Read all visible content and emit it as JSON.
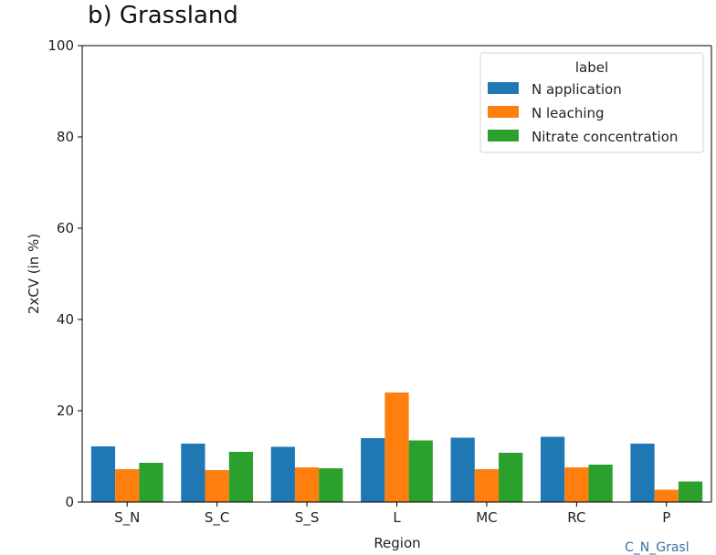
{
  "panel_title": "b) Grassland",
  "corner_text": "C_N_Grasl",
  "chart_data": {
    "type": "bar",
    "xlabel": "Region",
    "ylabel": "2xCV (in %)",
    "ylim": [
      0,
      100
    ],
    "yticks": [
      0,
      20,
      40,
      60,
      80,
      100
    ],
    "categories": [
      "S_N",
      "S_C",
      "S_S",
      "L",
      "MC",
      "RC",
      "P"
    ],
    "legend": {
      "title": "label",
      "placement": "top-right"
    },
    "series": [
      {
        "name": "N application",
        "color": "#1f77b4",
        "values": [
          12.2,
          12.8,
          12.1,
          14.0,
          14.1,
          14.3,
          12.8
        ]
      },
      {
        "name": "N leaching",
        "color": "#ff7f0e",
        "values": [
          7.2,
          7.0,
          7.6,
          24.0,
          7.2,
          7.6,
          2.7
        ]
      },
      {
        "name": "Nitrate concentration",
        "color": "#2ca02c",
        "values": [
          8.6,
          11.0,
          7.4,
          13.5,
          10.8,
          8.2,
          4.5
        ]
      }
    ],
    "grid": false
  }
}
